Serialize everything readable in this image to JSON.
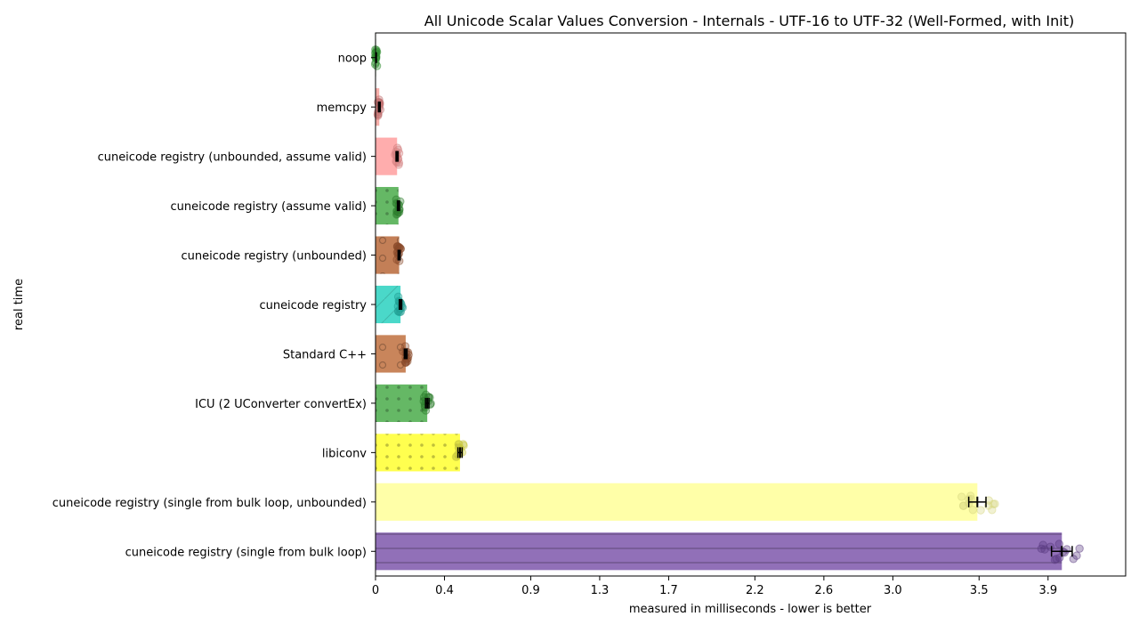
{
  "chart_data": {
    "type": "bar",
    "orientation": "horizontal",
    "title": "All Unicode Scalar Values Conversion - Internals - UTF-16 to UTF-32 (Well-Formed, with Init)",
    "xlabel": "measured in milliseconds - lower is better",
    "ylabel": "real time",
    "xlim": [
      0,
      4.35
    ],
    "xticks": [
      0,
      0.4,
      0.9,
      1.3,
      1.7,
      2.2,
      2.6,
      3.0,
      3.5,
      3.9
    ],
    "xtick_labels": [
      "0",
      "0.4",
      "0.9",
      "1.3",
      "1.7",
      "2.2",
      "2.6",
      "3.0",
      "3.5",
      "3.9"
    ],
    "categories": [
      "noop",
      "memcpy",
      "cuneicode registry (unbounded, assume valid)",
      "cuneicode registry (assume valid)",
      "cuneicode registry (unbounded)",
      "cuneicode registry",
      "Standard C++",
      "ICU (2 UConverter convertEx)",
      "libiconv",
      "cuneicode registry (single from bulk loop, unbounded)",
      "cuneicode registry (single from bulk loop)"
    ],
    "values": [
      0.003,
      0.022,
      0.125,
      0.133,
      0.137,
      0.145,
      0.175,
      0.3,
      0.49,
      3.49,
      3.98
    ],
    "errors": [
      0.002,
      0.005,
      0.006,
      0.006,
      0.006,
      0.007,
      0.008,
      0.01,
      0.012,
      0.05,
      0.06
    ],
    "colors": [
      "#2e8b2e",
      "#f4a09a",
      "#ff9f9f",
      "#4aab4a",
      "#b8683a",
      "#2ad1bf",
      "#c0703e",
      "#4aab4a",
      "#ffff30",
      "#ffff99",
      "#7e57ab"
    ],
    "marker_colors": [
      "#2e8b2e",
      "#c07070",
      "#d48080",
      "#2e7d2e",
      "#8a4a2a",
      "#1f9f93",
      "#8a4a2a",
      "#2e7d2e",
      "#c8c840",
      "#d8d880",
      "#5a3a80"
    ],
    "patterns": [
      "none",
      "none",
      "none",
      "dots",
      "circles",
      "diagonal",
      "circles",
      "dots",
      "dots",
      "none",
      "hlines"
    ]
  }
}
